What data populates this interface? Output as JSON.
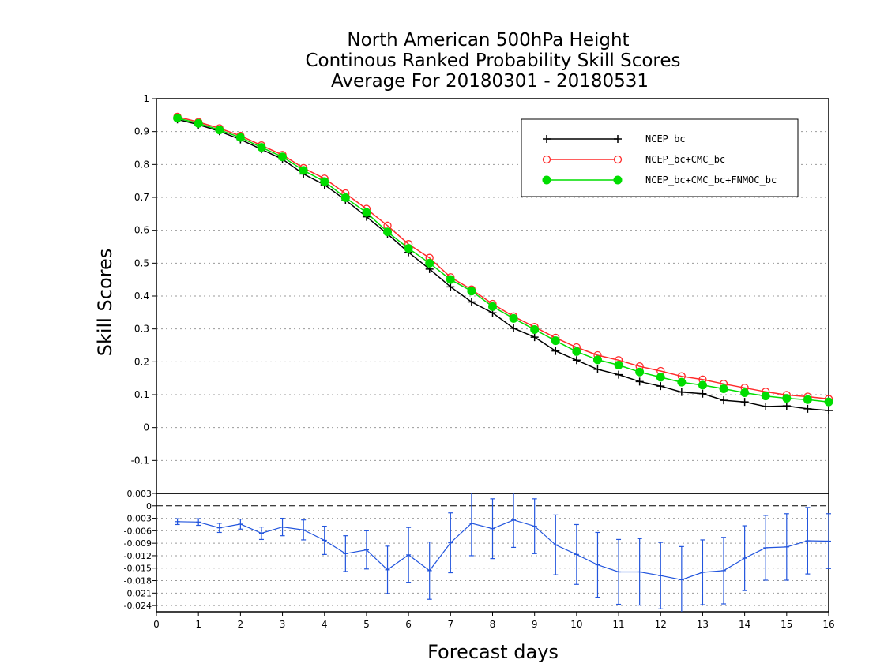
{
  "title": {
    "line1": "North American 500hPa Height",
    "line2": "Continous Ranked Probability Skill Scores",
    "line3": "Average For 20180301 - 20180531"
  },
  "chart_data": [
    {
      "type": "line",
      "xlabel": "Forecast days",
      "ylabel": "Skill Scores",
      "xlim": [
        0,
        16
      ],
      "ylim": [
        -0.2,
        1.0
      ],
      "x_ticks": [
        0,
        1,
        2,
        3,
        4,
        5,
        6,
        7,
        8,
        9,
        10,
        11,
        12,
        13,
        14,
        15,
        16
      ],
      "y_ticks": [
        -0.1,
        0,
        0.1,
        0.2,
        0.3,
        0.4,
        0.5,
        0.6,
        0.7,
        0.8,
        0.9,
        1
      ],
      "y_tick_labels": [
        "-0.1",
        "0",
        "0.1",
        "0.2",
        "0.3",
        "0.4",
        "0.5",
        "0.6",
        "0.7",
        "0.8",
        "0.9",
        "1"
      ],
      "grid": true,
      "legend_position": "top-right",
      "x": [
        0.5,
        1,
        1.5,
        2,
        2.5,
        3,
        3.5,
        4,
        4.5,
        5,
        5.5,
        6,
        6.5,
        7,
        7.5,
        8,
        8.5,
        9,
        9.5,
        10,
        10.5,
        11,
        11.5,
        12,
        12.5,
        13,
        13.5,
        14,
        14.5,
        15,
        15.5,
        16
      ],
      "series": [
        {
          "name": "NCEP_bc",
          "color": "#000000",
          "marker": "plus",
          "values": [
            0.937,
            0.921,
            0.901,
            0.876,
            0.846,
            0.816,
            0.771,
            0.738,
            0.692,
            0.641,
            0.589,
            0.533,
            0.482,
            0.428,
            0.382,
            0.349,
            0.302,
            0.275,
            0.233,
            0.205,
            0.177,
            0.161,
            0.14,
            0.126,
            0.108,
            0.103,
            0.083,
            0.078,
            0.064,
            0.066,
            0.057,
            0.052
          ]
        },
        {
          "name": "NCEP_bc+CMC_bc",
          "color": "#ff2a2a",
          "marker": "open-circle",
          "values": [
            0.945,
            0.929,
            0.91,
            0.887,
            0.858,
            0.829,
            0.789,
            0.757,
            0.712,
            0.665,
            0.614,
            0.558,
            0.516,
            0.457,
            0.42,
            0.376,
            0.338,
            0.306,
            0.273,
            0.244,
            0.22,
            0.205,
            0.186,
            0.172,
            0.156,
            0.146,
            0.133,
            0.121,
            0.109,
            0.099,
            0.094,
            0.087
          ]
        },
        {
          "name": "NCEP_bc+CMC_bc+FNMOC_bc",
          "color": "#00dd00",
          "marker": "filled-circle",
          "values": [
            0.941,
            0.925,
            0.905,
            0.882,
            0.852,
            0.823,
            0.782,
            0.748,
            0.699,
            0.654,
            0.595,
            0.545,
            0.5,
            0.45,
            0.415,
            0.368,
            0.332,
            0.298,
            0.264,
            0.231,
            0.206,
            0.19,
            0.169,
            0.153,
            0.138,
            0.129,
            0.118,
            0.106,
            0.096,
            0.089,
            0.085,
            0.078
          ]
        }
      ]
    },
    {
      "type": "line",
      "xlim": [
        0,
        16
      ],
      "ylim": [
        -0.0255,
        0.003
      ],
      "y_ticks": [
        0.003,
        0,
        -0.003,
        -0.006,
        -0.009,
        -0.012,
        -0.015,
        -0.018,
        -0.021,
        -0.024
      ],
      "y_tick_labels": [
        "0.003",
        "0",
        "-0.003",
        "-0.006",
        "-0.009",
        "-0.012",
        "-0.015",
        "-0.018",
        "-0.021",
        "-0.024"
      ],
      "x_ticks": [
        0,
        1,
        2,
        3,
        4,
        5,
        6,
        7,
        8,
        9,
        10,
        11,
        12,
        13,
        14,
        15,
        16
      ],
      "x_tick_labels": [
        "0",
        "1",
        "2",
        "3",
        "4",
        "5",
        "6",
        "7",
        "8",
        "9",
        "10",
        "11",
        "12",
        "13",
        "14",
        "15",
        "16"
      ],
      "grid": true,
      "zero_line": true,
      "x": [
        0.5,
        1,
        1.5,
        2,
        2.5,
        3,
        3.5,
        4,
        4.5,
        5,
        5.5,
        6,
        6.5,
        7,
        7.5,
        8,
        8.5,
        9,
        9.5,
        10,
        10.5,
        11,
        11.5,
        12,
        12.5,
        13,
        13.5,
        14,
        14.5,
        15,
        15.5,
        16
      ],
      "series": [
        {
          "color": "#2255dd",
          "values": [
            -0.0038,
            -0.0039,
            -0.0053,
            -0.0044,
            -0.0066,
            -0.0051,
            -0.0058,
            -0.0083,
            -0.0115,
            -0.0106,
            -0.0154,
            -0.0118,
            -0.0156,
            -0.0089,
            -0.0042,
            -0.0055,
            -0.0034,
            -0.0049,
            -0.0094,
            -0.0117,
            -0.0142,
            -0.0159,
            -0.0159,
            -0.0168,
            -0.0178,
            -0.016,
            -0.0156,
            -0.0126,
            -0.0101,
            -0.0099,
            -0.0084,
            -0.0085
          ],
          "error": [
            0.0007,
            0.0008,
            0.0011,
            0.0012,
            0.0015,
            0.0021,
            0.0024,
            0.0034,
            0.0043,
            0.0046,
            0.0057,
            0.0066,
            0.0069,
            0.0072,
            0.0078,
            0.0072,
            0.0066,
            0.0066,
            0.0072,
            0.0072,
            0.0078,
            0.0078,
            0.008,
            0.008,
            0.008,
            0.0078,
            0.008,
            0.0078,
            0.0078,
            0.008,
            0.008,
            0.0066
          ]
        }
      ]
    }
  ]
}
